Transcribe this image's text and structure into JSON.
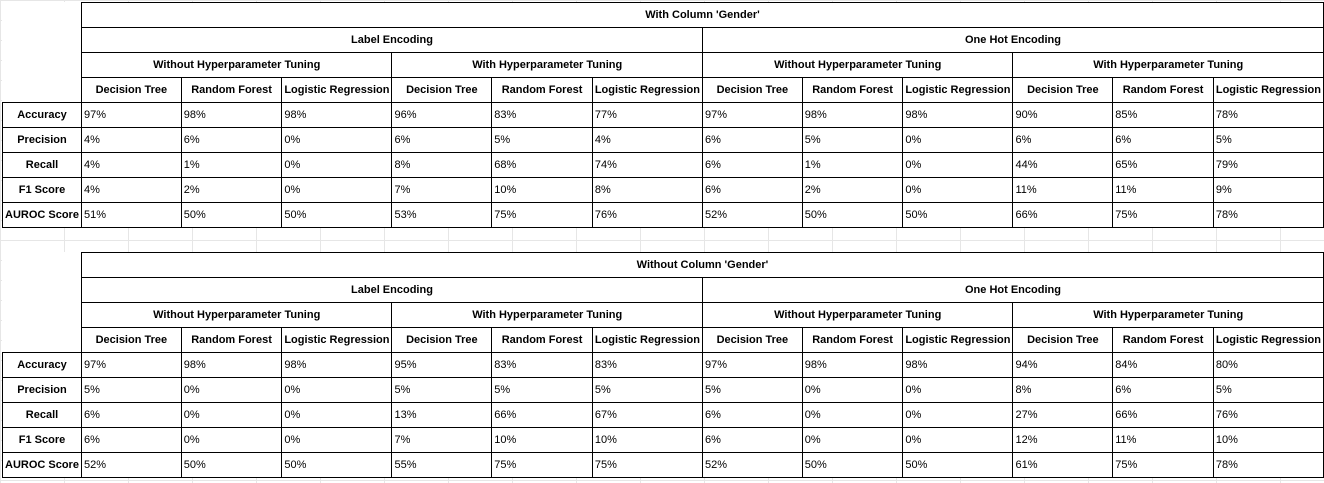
{
  "tables": [
    {
      "title": "With Column 'Gender'",
      "encodings": [
        {
          "label": "Label Encoding",
          "groups": [
            {
              "label": "Without Hyperparameter Tuning",
              "models": [
                "Decision Tree",
                "Random Forest",
                "Logistic Regression"
              ]
            },
            {
              "label": "With Hyperparameter Tuning",
              "models": [
                "Decision Tree",
                "Random Forest",
                "Logistic Regression"
              ]
            }
          ]
        },
        {
          "label": "One Hot Encoding",
          "groups": [
            {
              "label": "Without Hyperparameter Tuning",
              "models": [
                "Decision Tree",
                "Random Forest",
                "Logistic Regression"
              ]
            },
            {
              "label": "With Hyperparameter Tuning",
              "models": [
                "Decision Tree",
                "Random Forest",
                "Logistic Regression"
              ]
            }
          ]
        }
      ],
      "rows": [
        {
          "metric": "Accuracy",
          "values": [
            "97%",
            "98%",
            "98%",
            "96%",
            "83%",
            "77%",
            "97%",
            "98%",
            "98%",
            "90%",
            "85%",
            "78%"
          ]
        },
        {
          "metric": "Precision",
          "values": [
            "4%",
            "6%",
            "0%",
            "6%",
            "5%",
            "4%",
            "6%",
            "5%",
            "0%",
            "6%",
            "6%",
            "5%"
          ]
        },
        {
          "metric": "Recall",
          "values": [
            "4%",
            "1%",
            "0%",
            "8%",
            "68%",
            "74%",
            "6%",
            "1%",
            "0%",
            "44%",
            "65%",
            "79%"
          ]
        },
        {
          "metric": "F1 Score",
          "values": [
            "4%",
            "2%",
            "0%",
            "7%",
            "10%",
            "8%",
            "6%",
            "2%",
            "0%",
            "11%",
            "11%",
            "9%"
          ]
        },
        {
          "metric": "AUROC Score",
          "values": [
            "51%",
            "50%",
            "50%",
            "53%",
            "75%",
            "76%",
            "52%",
            "50%",
            "50%",
            "66%",
            "75%",
            "78%"
          ]
        }
      ]
    },
    {
      "title": "Without Column 'Gender'",
      "encodings": [
        {
          "label": "Label Encoding",
          "groups": [
            {
              "label": "Without Hyperparameter Tuning",
              "models": [
                "Decision Tree",
                "Random Forest",
                "Logistic Regression"
              ]
            },
            {
              "label": "With Hyperparameter Tuning",
              "models": [
                "Decision Tree",
                "Random Forest",
                "Logistic Regression"
              ]
            }
          ]
        },
        {
          "label": "One Hot Encoding",
          "groups": [
            {
              "label": "Without Hyperparameter Tuning",
              "models": [
                "Decision Tree",
                "Random Forest",
                "Logistic Regression"
              ]
            },
            {
              "label": "With Hyperparameter Tuning",
              "models": [
                "Decision Tree",
                "Random Forest",
                "Logistic Regression"
              ]
            }
          ]
        }
      ],
      "rows": [
        {
          "metric": "Accuracy",
          "values": [
            "97%",
            "98%",
            "98%",
            "95%",
            "83%",
            "83%",
            "97%",
            "98%",
            "98%",
            "94%",
            "84%",
            "80%"
          ]
        },
        {
          "metric": "Precision",
          "values": [
            "5%",
            "0%",
            "0%",
            "5%",
            "5%",
            "5%",
            "5%",
            "0%",
            "0%",
            "8%",
            "6%",
            "5%"
          ]
        },
        {
          "metric": "Recall",
          "values": [
            "6%",
            "0%",
            "0%",
            "13%",
            "66%",
            "67%",
            "6%",
            "0%",
            "0%",
            "27%",
            "66%",
            "76%"
          ]
        },
        {
          "metric": "F1 Score",
          "values": [
            "6%",
            "0%",
            "0%",
            "7%",
            "10%",
            "10%",
            "6%",
            "0%",
            "0%",
            "12%",
            "11%",
            "10%"
          ]
        },
        {
          "metric": "AUROC Score",
          "values": [
            "52%",
            "50%",
            "50%",
            "55%",
            "75%",
            "75%",
            "52%",
            "50%",
            "50%",
            "61%",
            "75%",
            "78%"
          ]
        }
      ]
    }
  ]
}
